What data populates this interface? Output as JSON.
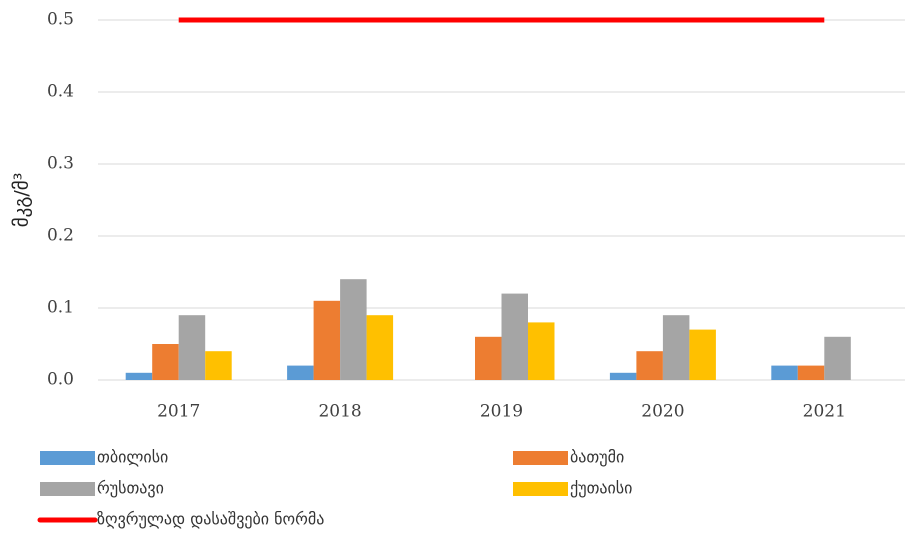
{
  "chart_data": {
    "type": "bar",
    "y_label": "მკგ/მ³",
    "categories": [
      "2017",
      "2018",
      "2019",
      "2020",
      "2021"
    ],
    "series": [
      {
        "name": "თბილისი",
        "color": "#5b9bd5",
        "values": [
          0.01,
          0.02,
          0,
          0.01,
          0.02
        ]
      },
      {
        "name": "ბათუმი",
        "color": "#ed7d31",
        "values": [
          0.05,
          0.11,
          0.06,
          0.04,
          0.02
        ]
      },
      {
        "name": "რუსთავი",
        "color": "#a5a5a5",
        "values": [
          0.09,
          0.14,
          0.12,
          0.09,
          0.06
        ]
      },
      {
        "name": "ქუთაისი",
        "color": "#ffc000",
        "values": [
          0.04,
          0.09,
          0.08,
          0.07,
          0
        ]
      },
      {
        "name": "ზღვრულად დასაშვები ნორმა",
        "color": "#ff0000",
        "type": "line",
        "values": [
          0.5,
          0.5,
          0.5,
          0.5,
          0.5
        ]
      }
    ],
    "ylim": [
      0,
      0.5
    ],
    "yticks": [
      {
        "value": 0,
        "label": "0.0"
      },
      0.1,
      0.2,
      0.3,
      0.4,
      0.5
    ],
    "grid": true
  }
}
